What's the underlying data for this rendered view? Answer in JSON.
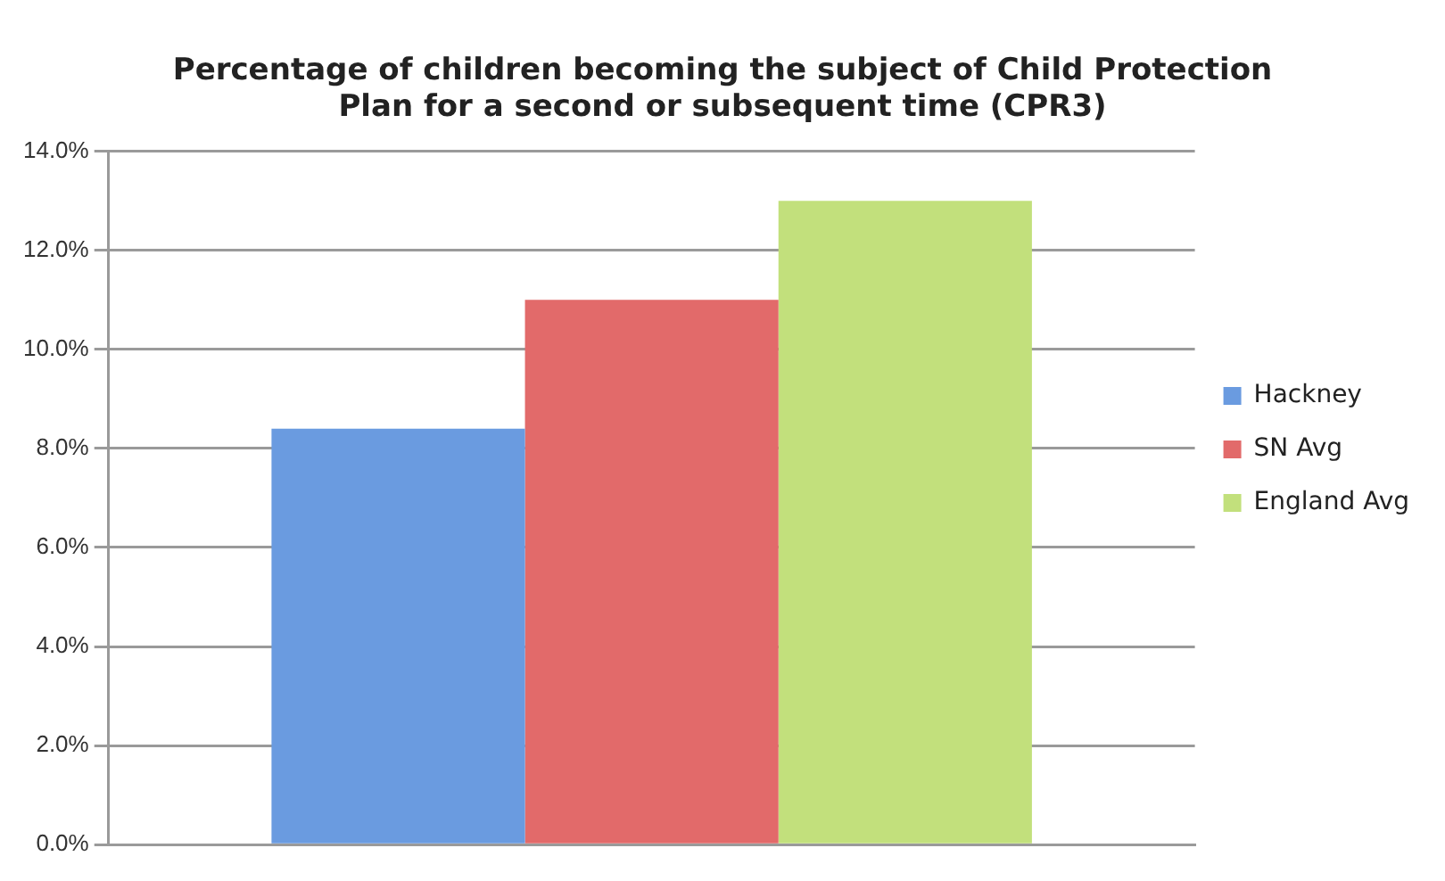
{
  "chart_data": {
    "type": "bar",
    "title": "Percentage of children becoming the subject of Child Protection Plan for a second or subsequent time (CPR3)",
    "categories": [
      null
    ],
    "series": [
      {
        "name": "Hackney",
        "color": "#6a9be0",
        "values": [
          8.4
        ]
      },
      {
        "name": "SN Avg",
        "color": "#e26a6a",
        "values": [
          11.0
        ]
      },
      {
        "name": "England Avg",
        "color": "#c2e07c",
        "values": [
          13.0
        ]
      }
    ],
    "ylim": [
      0,
      14
    ],
    "yticks": [
      {
        "value": 0,
        "label": "0.0%"
      },
      {
        "value": 2,
        "label": "2.0%"
      },
      {
        "value": 4,
        "label": "4.0%"
      },
      {
        "value": 6,
        "label": "6.0%"
      },
      {
        "value": 8,
        "label": "8.0%"
      },
      {
        "value": 10,
        "label": "10.0%"
      },
      {
        "value": 12,
        "label": "12.0%"
      },
      {
        "value": 14,
        "label": "14.0%"
      }
    ],
    "grid": "y",
    "legend": "right"
  }
}
